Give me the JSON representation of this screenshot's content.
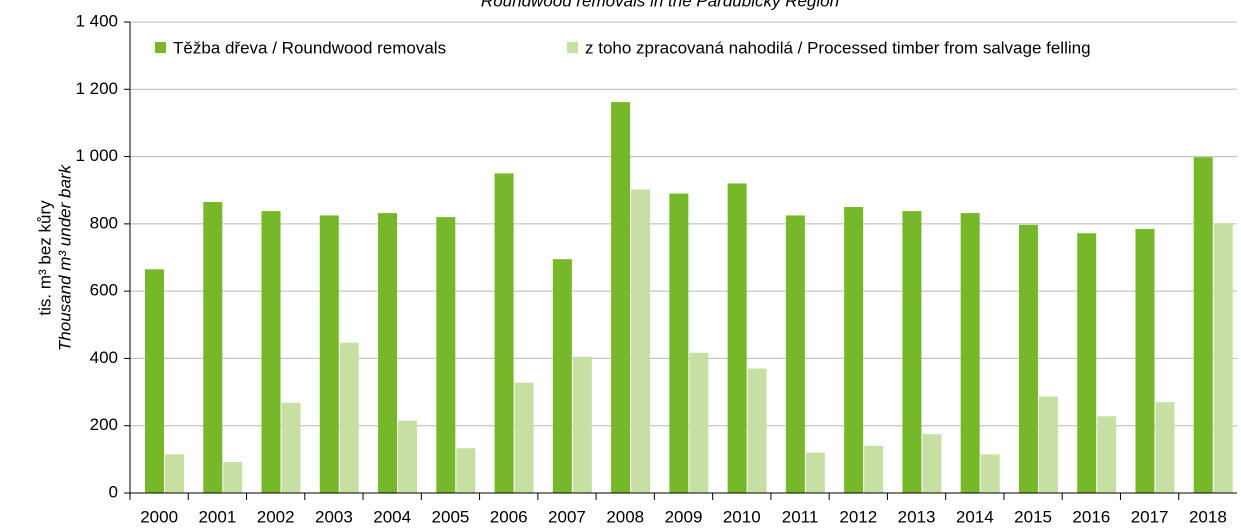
{
  "chart_data": {
    "type": "bar",
    "title": "Roundwood removals in the Pardubický Region",
    "y_label": "tis. m³ bez kůry",
    "y_label_en": "Thousand m³ under bark",
    "categories": [
      "2000",
      "2001",
      "2002",
      "2003",
      "2004",
      "2005",
      "2006",
      "2007",
      "2008",
      "2009",
      "2010",
      "2011",
      "2012",
      "2013",
      "2014",
      "2015",
      "2016",
      "2017",
      "2018"
    ],
    "series": [
      {
        "name": "Těžba dřeva / Roundwood removals",
        "color": "#76b82a",
        "values": [
          665,
          865,
          838,
          825,
          832,
          820,
          950,
          695,
          1162,
          890,
          920,
          825,
          850,
          838,
          832,
          797,
          772,
          785,
          998
        ]
      },
      {
        "name": "z toho zpracovaná nahodilá / Processed timber from salvage felling",
        "color": "#c6e0a4",
        "values": [
          115,
          92,
          268,
          447,
          215,
          133,
          328,
          405,
          902,
          417,
          370,
          120,
          140,
          175,
          115,
          287,
          228,
          270,
          802
        ]
      }
    ],
    "ylim": [
      0,
      1400
    ],
    "yticks": [
      0,
      200,
      400,
      600,
      800,
      {
        "value": 1000,
        "label": "1 000"
      },
      {
        "value": 1200,
        "label": "1 200"
      },
      {
        "value": 1400,
        "label": "1 400"
      }
    ],
    "grid": true
  }
}
